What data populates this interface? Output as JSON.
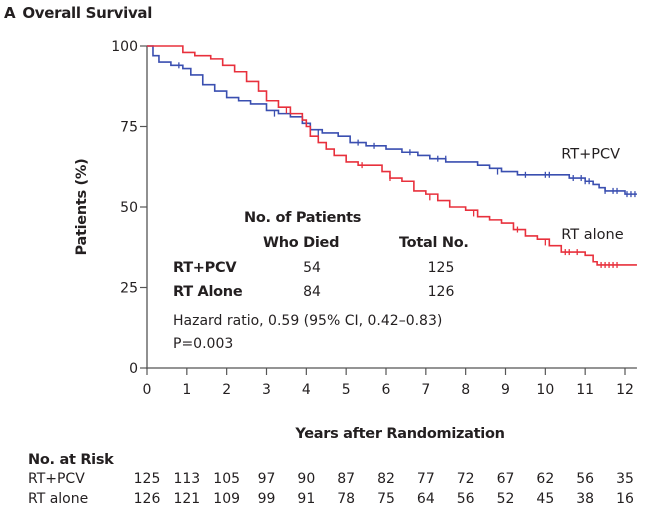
{
  "panel": {
    "letter": "A",
    "title": "Overall Survival"
  },
  "colors": {
    "rt_pcv": "#3a4fb0",
    "rt_alone": "#e8303c",
    "axis": "#555555"
  },
  "chart_data": {
    "type": "line",
    "title": "Overall Survival",
    "xlabel": "Years after Randomization",
    "ylabel": "Patients (%)",
    "xlim": [
      0,
      12.3
    ],
    "ylim": [
      0,
      100
    ],
    "xticks": [
      0,
      1,
      2,
      3,
      4,
      5,
      6,
      7,
      8,
      9,
      10,
      11,
      12
    ],
    "yticks": [
      0,
      25,
      50,
      75,
      100
    ],
    "grid": false,
    "step": true,
    "series": [
      {
        "name": "RT+PCV",
        "color": "#3a4fb0",
        "points": [
          [
            0,
            100
          ],
          [
            0.15,
            97
          ],
          [
            0.3,
            95
          ],
          [
            0.6,
            94
          ],
          [
            0.9,
            93
          ],
          [
            1.1,
            91
          ],
          [
            1.4,
            88
          ],
          [
            1.7,
            86
          ],
          [
            2.0,
            84
          ],
          [
            2.3,
            83
          ],
          [
            2.6,
            82
          ],
          [
            3.0,
            80
          ],
          [
            3.3,
            79
          ],
          [
            3.6,
            78
          ],
          [
            3.9,
            76
          ],
          [
            4.1,
            74
          ],
          [
            4.4,
            73
          ],
          [
            4.8,
            72
          ],
          [
            5.1,
            70
          ],
          [
            5.5,
            69
          ],
          [
            6.0,
            68
          ],
          [
            6.4,
            67
          ],
          [
            6.8,
            66
          ],
          [
            7.1,
            65
          ],
          [
            7.5,
            64
          ],
          [
            8.0,
            64
          ],
          [
            8.3,
            63
          ],
          [
            8.6,
            62
          ],
          [
            8.9,
            61
          ],
          [
            9.3,
            60
          ],
          [
            9.7,
            60
          ],
          [
            10.2,
            60
          ],
          [
            10.6,
            59
          ],
          [
            11.0,
            58
          ],
          [
            11.2,
            57
          ],
          [
            11.35,
            56
          ],
          [
            11.5,
            55
          ],
          [
            11.9,
            55
          ],
          [
            12.0,
            54
          ],
          [
            12.3,
            54
          ]
        ],
        "censor_marks": [
          [
            0.8,
            94
          ],
          [
            3.2,
            79
          ],
          [
            4.3,
            73
          ],
          [
            5.3,
            70
          ],
          [
            5.7,
            69
          ],
          [
            6.6,
            67
          ],
          [
            7.3,
            65
          ],
          [
            7.5,
            65
          ],
          [
            8.8,
            61
          ],
          [
            9.5,
            60
          ],
          [
            10.0,
            60
          ],
          [
            10.1,
            60
          ],
          [
            10.7,
            59
          ],
          [
            10.9,
            59
          ],
          [
            11.0,
            58
          ],
          [
            11.1,
            58
          ],
          [
            11.5,
            55
          ],
          [
            11.7,
            55
          ],
          [
            11.8,
            55
          ],
          [
            12.05,
            54
          ],
          [
            12.15,
            54
          ],
          [
            12.25,
            54
          ]
        ]
      },
      {
        "name": "RT alone",
        "color": "#e8303c",
        "points": [
          [
            0,
            100
          ],
          [
            0.6,
            100
          ],
          [
            0.9,
            98
          ],
          [
            1.2,
            97
          ],
          [
            1.6,
            96
          ],
          [
            1.9,
            94
          ],
          [
            2.2,
            92
          ],
          [
            2.5,
            89
          ],
          [
            2.8,
            86
          ],
          [
            3.0,
            83
          ],
          [
            3.3,
            81
          ],
          [
            3.6,
            79
          ],
          [
            3.9,
            77
          ],
          [
            4.0,
            75
          ],
          [
            4.1,
            72
          ],
          [
            4.3,
            70
          ],
          [
            4.5,
            68
          ],
          [
            4.7,
            66
          ],
          [
            5.0,
            64
          ],
          [
            5.3,
            63
          ],
          [
            5.7,
            63
          ],
          [
            5.9,
            61
          ],
          [
            6.1,
            59
          ],
          [
            6.4,
            58
          ],
          [
            6.7,
            55
          ],
          [
            7.0,
            54
          ],
          [
            7.3,
            52
          ],
          [
            7.6,
            50
          ],
          [
            8.0,
            49
          ],
          [
            8.3,
            47
          ],
          [
            8.6,
            46
          ],
          [
            8.9,
            45
          ],
          [
            9.2,
            43
          ],
          [
            9.5,
            41
          ],
          [
            9.8,
            40
          ],
          [
            10.1,
            38
          ],
          [
            10.4,
            36
          ],
          [
            10.7,
            36
          ],
          [
            11.0,
            35
          ],
          [
            11.2,
            33
          ],
          [
            11.3,
            32
          ],
          [
            12.3,
            32
          ]
        ],
        "censor_marks": [
          [
            3.5,
            80
          ],
          [
            5.4,
            63
          ],
          [
            6.1,
            59
          ],
          [
            7.1,
            53
          ],
          [
            8.2,
            48
          ],
          [
            9.3,
            43
          ],
          [
            10.0,
            39
          ],
          [
            10.5,
            36
          ],
          [
            10.6,
            36
          ],
          [
            10.8,
            36
          ],
          [
            11.4,
            32
          ],
          [
            11.5,
            32
          ],
          [
            11.6,
            32
          ],
          [
            11.7,
            32
          ],
          [
            11.8,
            32
          ]
        ]
      }
    ],
    "series_labels": [
      {
        "series": "RT+PCV",
        "text": "RT+PCV",
        "x": 10.4,
        "y": 65
      },
      {
        "series": "RT alone",
        "text": "RT alone",
        "x": 10.4,
        "y": 40
      }
    ],
    "annotation_table": {
      "header_died_line1": "No. of Patients",
      "header_died_line2": "Who Died",
      "header_total": "Total No.",
      "rows": [
        {
          "group": "RT+PCV",
          "died": "54",
          "total": "125"
        },
        {
          "group": "RT Alone",
          "died": "84",
          "total": "126"
        }
      ],
      "hazard_ratio": "Hazard ratio, 0.59 (95% CI, 0.42–0.83)",
      "p_value": "P=0.003"
    }
  },
  "risk_table": {
    "title": "No. at Risk",
    "rows": [
      {
        "label": "RT+PCV",
        "values": [
          "125",
          "113",
          "105",
          "97",
          "90",
          "87",
          "82",
          "77",
          "72",
          "67",
          "62",
          "56",
          "35"
        ]
      },
      {
        "label": "RT alone",
        "values": [
          "126",
          "121",
          "109",
          "99",
          "91",
          "78",
          "75",
          "64",
          "56",
          "52",
          "45",
          "38",
          "16"
        ]
      }
    ]
  }
}
